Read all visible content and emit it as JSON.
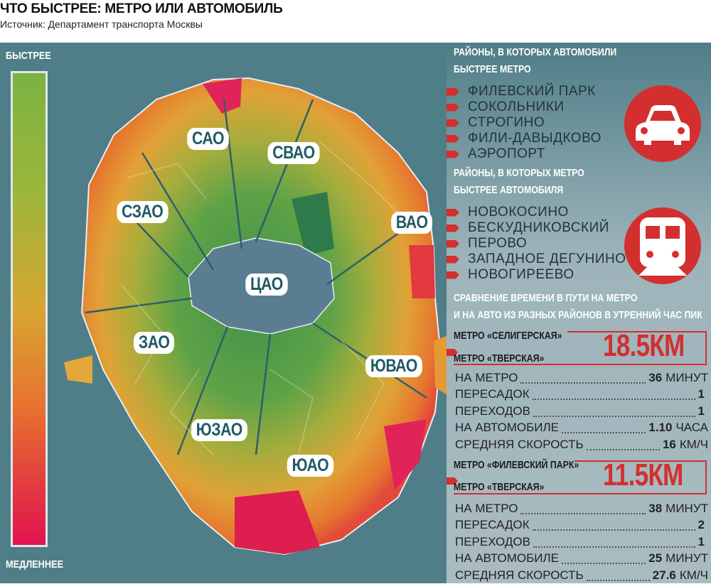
{
  "title": "ЧТО БЫСТРЕЕ: МЕТРО ИЛИ АВТОМОБИЛЬ",
  "source": "Источник: Департамент транспорта Москвы",
  "legend": {
    "top": "БЫСТРЕЕ",
    "bottom": "МЕДЛЕННЕЕ",
    "colors": {
      "fast": "#7cb342",
      "mid": "#d8a531",
      "slow": "#e3124f"
    }
  },
  "districts": [
    "САО",
    "СВАО",
    "СЗАО",
    "ВАО",
    "ЦАО",
    "ЗАО",
    "ЮВАО",
    "ЮЗАО",
    "ЮАО"
  ],
  "car_faster": {
    "heading": [
      "РАЙОНЫ, В КОТОРЫХ АВТОМОБИЛИ",
      "БЫСТРЕЕ МЕТРО"
    ],
    "items": [
      "ФИЛЕВСКИЙ ПАРК",
      "СОКОЛЬНИКИ",
      "СТРОГИНО",
      "ФИЛИ-ДАВЫДКОВО",
      "АЭРОПОРТ"
    ],
    "icon": "car-icon"
  },
  "metro_faster": {
    "heading": [
      "РАЙОНЫ, В КОТОРЫХ МЕТРО",
      "БЫСТРЕЕ АВТОМОБИЛЯ"
    ],
    "items": [
      "НОВОКОСИНО",
      "БЕСКУДНИКОВСКИЙ",
      "ПЕРОВО",
      "ЗАПАДНОЕ ДЕГУНИНО",
      "НОВОГИРЕЕВО"
    ],
    "icon": "train-icon"
  },
  "comparison": {
    "heading": [
      "СРАВНЕНИЕ ВРЕМЕНИ В ПУТИ НА МЕТРО",
      "И НА АВТО ИЗ РАЗНЫХ РАЙОНОВ В УТРЕННИЙ ЧАС ПИК"
    ],
    "routes": [
      {
        "from": "МЕТРО «СЕЛИГЕРСКАЯ»",
        "to": "МЕТРО «ТВЕРСКАЯ»",
        "distance": "18.5КМ",
        "rows": [
          {
            "label": "НА МЕТРО",
            "value": "36",
            "unit": "МИНУТ"
          },
          {
            "label": "ПЕРЕСАДОК",
            "value": "1",
            "unit": ""
          },
          {
            "label": "ПЕРЕХОДОВ",
            "value": "1",
            "unit": ""
          },
          {
            "label": "НА АВТОМОБИЛЕ",
            "value": "1.10",
            "unit": "ЧАСА"
          },
          {
            "label": "СРЕДНЯЯ СКОРОСТЬ",
            "value": "16",
            "unit": "КМ/Ч"
          }
        ]
      },
      {
        "from": "МЕТРО «ФИЛЕВСКИЙ ПАРК»",
        "to": "МЕТРО «ТВЕРСКАЯ»",
        "distance": "11.5КМ",
        "rows": [
          {
            "label": "НА МЕТРО",
            "value": "38",
            "unit": "МИНУТ"
          },
          {
            "label": "ПЕРЕСАДОК",
            "value": "2",
            "unit": ""
          },
          {
            "label": "ПЕРЕХОДОВ",
            "value": "1",
            "unit": ""
          },
          {
            "label": "НА АВТОМОБИЛЕ",
            "value": "25",
            "unit": "МИНУТ"
          },
          {
            "label": "СРЕДНЯЯ СКОРОСТЬ",
            "value": "27.6",
            "unit": "КМ/Ч"
          }
        ]
      }
    ]
  }
}
